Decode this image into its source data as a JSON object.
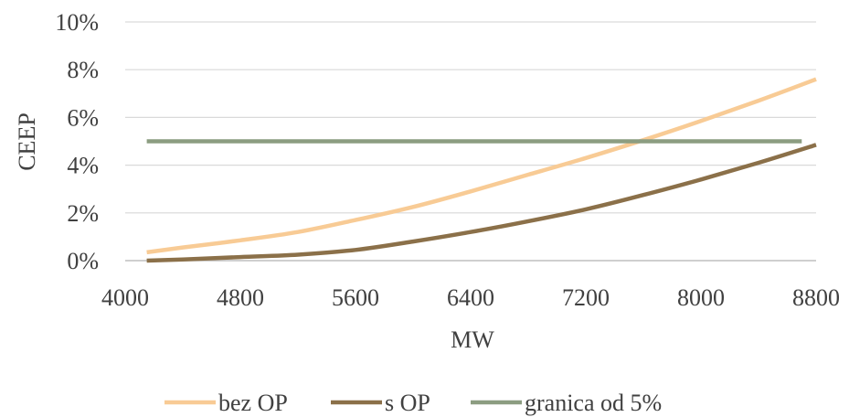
{
  "chart_data": {
    "type": "line",
    "title": "",
    "xlabel": "MW",
    "ylabel": "CEEP",
    "xlim": [
      4000,
      8800
    ],
    "ylim": [
      0,
      10
    ],
    "x_ticks": [
      4000,
      4800,
      5600,
      6400,
      7200,
      8000,
      8800
    ],
    "x_tick_labels": [
      "4000",
      "4800",
      "5600",
      "6400",
      "7200",
      "8000",
      "8800"
    ],
    "y_ticks": [
      0,
      2,
      4,
      6,
      8,
      10
    ],
    "y_tick_labels": [
      "0%",
      "2%",
      "4%",
      "6%",
      "8%",
      "10%"
    ],
    "grid": "horizontal",
    "legend_position": "bottom",
    "series": [
      {
        "name": "bez OP",
        "color": "#F8CB95",
        "x": [
          4150,
          4400,
          4800,
          5200,
          5600,
          6000,
          6400,
          6800,
          7200,
          7600,
          8000,
          8400,
          8800
        ],
        "y": [
          0.35,
          0.55,
          0.85,
          1.2,
          1.7,
          2.25,
          2.9,
          3.6,
          4.3,
          5.05,
          5.85,
          6.7,
          7.6
        ]
      },
      {
        "name": "s OP",
        "color": "#8B7049",
        "x": [
          4150,
          4400,
          4800,
          5200,
          5600,
          6000,
          6400,
          6800,
          7200,
          7600,
          8000,
          8400,
          8800
        ],
        "y": [
          0.0,
          0.05,
          0.15,
          0.25,
          0.45,
          0.8,
          1.2,
          1.65,
          2.15,
          2.75,
          3.4,
          4.1,
          4.85
        ]
      },
      {
        "name": "granica od 5%",
        "color": "#8C9D81",
        "x": [
          4150,
          8700
        ],
        "y": [
          5,
          5
        ]
      }
    ]
  }
}
